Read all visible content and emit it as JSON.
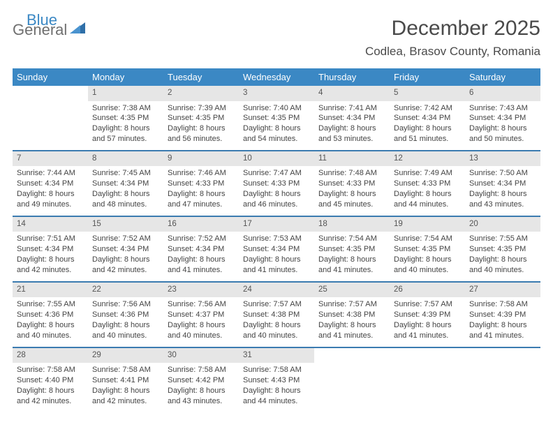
{
  "logo": {
    "word1": "General",
    "word2": "Blue"
  },
  "title": "December 2025",
  "location": "Codlea, Brasov County, Romania",
  "colors": {
    "header_bg": "#3b88c4",
    "row_border": "#3b7bb0",
    "daynum_bg": "#e6e6e6",
    "text": "#444444",
    "title_text": "#4a4a4a",
    "logo_gray": "#6f6f6f",
    "logo_blue": "#3b88c4"
  },
  "typography": {
    "month_title_pt": 30,
    "location_pt": 17,
    "weekday_pt": 13,
    "daynum_pt": 11.5,
    "body_pt": 11
  },
  "weekdays": [
    "Sunday",
    "Monday",
    "Tuesday",
    "Wednesday",
    "Thursday",
    "Friday",
    "Saturday"
  ],
  "layout": {
    "columns": 7,
    "rows": 5,
    "start_day_index": 1,
    "days_in_month": 31
  },
  "days": [
    {
      "n": 1,
      "sunrise": "7:38 AM",
      "sunset": "4:35 PM",
      "daylight": "8 hours and 57 minutes."
    },
    {
      "n": 2,
      "sunrise": "7:39 AM",
      "sunset": "4:35 PM",
      "daylight": "8 hours and 56 minutes."
    },
    {
      "n": 3,
      "sunrise": "7:40 AM",
      "sunset": "4:35 PM",
      "daylight": "8 hours and 54 minutes."
    },
    {
      "n": 4,
      "sunrise": "7:41 AM",
      "sunset": "4:34 PM",
      "daylight": "8 hours and 53 minutes."
    },
    {
      "n": 5,
      "sunrise": "7:42 AM",
      "sunset": "4:34 PM",
      "daylight": "8 hours and 51 minutes."
    },
    {
      "n": 6,
      "sunrise": "7:43 AM",
      "sunset": "4:34 PM",
      "daylight": "8 hours and 50 minutes."
    },
    {
      "n": 7,
      "sunrise": "7:44 AM",
      "sunset": "4:34 PM",
      "daylight": "8 hours and 49 minutes."
    },
    {
      "n": 8,
      "sunrise": "7:45 AM",
      "sunset": "4:34 PM",
      "daylight": "8 hours and 48 minutes."
    },
    {
      "n": 9,
      "sunrise": "7:46 AM",
      "sunset": "4:33 PM",
      "daylight": "8 hours and 47 minutes."
    },
    {
      "n": 10,
      "sunrise": "7:47 AM",
      "sunset": "4:33 PM",
      "daylight": "8 hours and 46 minutes."
    },
    {
      "n": 11,
      "sunrise": "7:48 AM",
      "sunset": "4:33 PM",
      "daylight": "8 hours and 45 minutes."
    },
    {
      "n": 12,
      "sunrise": "7:49 AM",
      "sunset": "4:33 PM",
      "daylight": "8 hours and 44 minutes."
    },
    {
      "n": 13,
      "sunrise": "7:50 AM",
      "sunset": "4:34 PM",
      "daylight": "8 hours and 43 minutes."
    },
    {
      "n": 14,
      "sunrise": "7:51 AM",
      "sunset": "4:34 PM",
      "daylight": "8 hours and 42 minutes."
    },
    {
      "n": 15,
      "sunrise": "7:52 AM",
      "sunset": "4:34 PM",
      "daylight": "8 hours and 42 minutes."
    },
    {
      "n": 16,
      "sunrise": "7:52 AM",
      "sunset": "4:34 PM",
      "daylight": "8 hours and 41 minutes."
    },
    {
      "n": 17,
      "sunrise": "7:53 AM",
      "sunset": "4:34 PM",
      "daylight": "8 hours and 41 minutes."
    },
    {
      "n": 18,
      "sunrise": "7:54 AM",
      "sunset": "4:35 PM",
      "daylight": "8 hours and 41 minutes."
    },
    {
      "n": 19,
      "sunrise": "7:54 AM",
      "sunset": "4:35 PM",
      "daylight": "8 hours and 40 minutes."
    },
    {
      "n": 20,
      "sunrise": "7:55 AM",
      "sunset": "4:35 PM",
      "daylight": "8 hours and 40 minutes."
    },
    {
      "n": 21,
      "sunrise": "7:55 AM",
      "sunset": "4:36 PM",
      "daylight": "8 hours and 40 minutes."
    },
    {
      "n": 22,
      "sunrise": "7:56 AM",
      "sunset": "4:36 PM",
      "daylight": "8 hours and 40 minutes."
    },
    {
      "n": 23,
      "sunrise": "7:56 AM",
      "sunset": "4:37 PM",
      "daylight": "8 hours and 40 minutes."
    },
    {
      "n": 24,
      "sunrise": "7:57 AM",
      "sunset": "4:38 PM",
      "daylight": "8 hours and 40 minutes."
    },
    {
      "n": 25,
      "sunrise": "7:57 AM",
      "sunset": "4:38 PM",
      "daylight": "8 hours and 41 minutes."
    },
    {
      "n": 26,
      "sunrise": "7:57 AM",
      "sunset": "4:39 PM",
      "daylight": "8 hours and 41 minutes."
    },
    {
      "n": 27,
      "sunrise": "7:58 AM",
      "sunset": "4:39 PM",
      "daylight": "8 hours and 41 minutes."
    },
    {
      "n": 28,
      "sunrise": "7:58 AM",
      "sunset": "4:40 PM",
      "daylight": "8 hours and 42 minutes."
    },
    {
      "n": 29,
      "sunrise": "7:58 AM",
      "sunset": "4:41 PM",
      "daylight": "8 hours and 42 minutes."
    },
    {
      "n": 30,
      "sunrise": "7:58 AM",
      "sunset": "4:42 PM",
      "daylight": "8 hours and 43 minutes."
    },
    {
      "n": 31,
      "sunrise": "7:58 AM",
      "sunset": "4:43 PM",
      "daylight": "8 hours and 44 minutes."
    }
  ],
  "labels": {
    "sunrise": "Sunrise:",
    "sunset": "Sunset:",
    "daylight": "Daylight:"
  }
}
